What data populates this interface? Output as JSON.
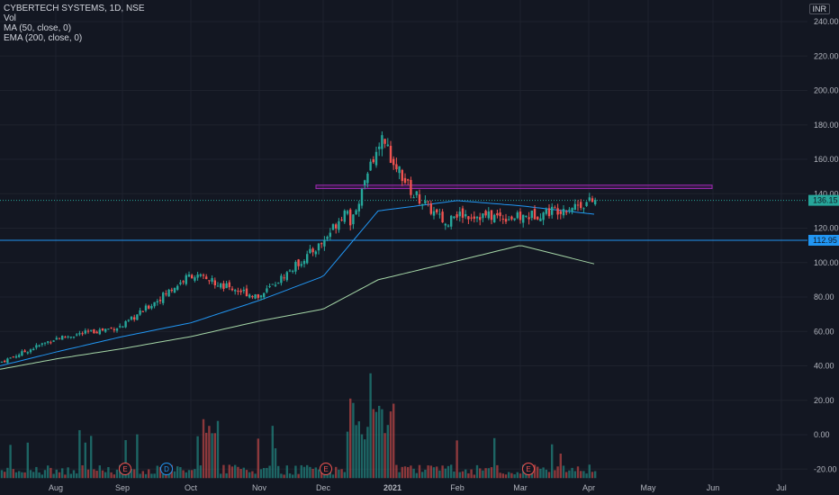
{
  "legend": {
    "symbol": "CYBERTECH SYSTEMS, 1D, NSE",
    "vol": "Vol",
    "ma": "MA (50, close, 0)",
    "ema": "EMA (200, close, 0)"
  },
  "currency": "INR",
  "colors": {
    "background": "#131722",
    "grid": "#1e222d",
    "up": "#26a69a",
    "down": "#ef5350",
    "ma": "#2196f3",
    "ema": "#a5d6a7",
    "zone_border": "#9c27b0",
    "support": "#2196f3",
    "last_price": "#26a69a"
  },
  "chart_data": {
    "type": "candlestick",
    "title": "CYBERTECH SYSTEMS, 1D, NSE",
    "x_axis_labels": [
      "Aug",
      "Sep",
      "Oct",
      "Nov",
      "Dec",
      "2021",
      "Feb",
      "Mar",
      "Apr",
      "May",
      "Jun",
      "Jul"
    ],
    "y_axis_labels": [
      "240.00",
      "220.00",
      "200.00",
      "180.00",
      "160.00",
      "140.00",
      "120.00",
      "100.00",
      "80.00",
      "60.00",
      "40.00",
      "20.00",
      "0.00",
      "-20.00"
    ],
    "ylim": [
      -20,
      245
    ],
    "last_price": "136.15",
    "support_level": "112.95",
    "resistance_zone": [
      143,
      145
    ],
    "events": [
      {
        "label": "E",
        "month": "Aug-Sep"
      },
      {
        "label": "D",
        "month": "Sep"
      },
      {
        "label": "E",
        "month": "Nov"
      },
      {
        "label": "E",
        "month": "Feb-Mar"
      }
    ],
    "price_path_months": [
      "Jul",
      "Aug",
      "Sep",
      "Oct",
      "Nov",
      "Dec",
      "Jan",
      "Feb",
      "Mar",
      "Apr"
    ],
    "price_path_close": [
      42,
      56,
      63,
      93,
      80,
      112,
      158,
      128,
      126,
      136
    ],
    "ma50_path": [
      40,
      48,
      57,
      65,
      78,
      92,
      130,
      136,
      133,
      128
    ],
    "ema200_path": [
      38,
      44,
      50,
      57,
      66,
      73,
      90,
      101,
      110,
      99
    ]
  }
}
